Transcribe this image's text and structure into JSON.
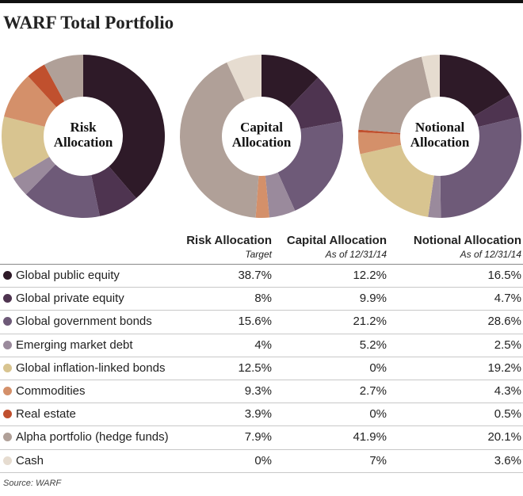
{
  "title": "WARF Total Portfolio",
  "source": "Source: WARF",
  "chart_data": [
    {
      "type": "donut",
      "title": "Risk Allocation",
      "subtitle": "Target",
      "categories": [
        "Global public equity",
        "Global private equity",
        "Global government bonds",
        "Emerging market debt",
        "Global inflation-linked bonds",
        "Commodities",
        "Real estate",
        "Alpha portfolio (hedge funds)",
        "Cash"
      ],
      "colors": [
        "#2e1a28",
        "#4e3450",
        "#6e5a78",
        "#9a8a9c",
        "#d8c490",
        "#d4906a",
        "#c0502e",
        "#b0a098",
        "#e6dcd0"
      ],
      "values": [
        38.7,
        8,
        15.6,
        4,
        12.5,
        9.3,
        3.9,
        7.9,
        0
      ],
      "value_labels": [
        "38.7%",
        "8%",
        "15.6%",
        "4%",
        "12.5%",
        "9.3%",
        "3.9%",
        "7.9%",
        "0%"
      ]
    },
    {
      "type": "donut",
      "title": "Capital Allocation",
      "subtitle": "As of 12/31/14",
      "categories": [
        "Global public equity",
        "Global private equity",
        "Global government bonds",
        "Emerging market debt",
        "Global inflation-linked bonds",
        "Commodities",
        "Real estate",
        "Alpha portfolio (hedge funds)",
        "Cash"
      ],
      "colors": [
        "#2e1a28",
        "#4e3450",
        "#6e5a78",
        "#9a8a9c",
        "#d8c490",
        "#d4906a",
        "#c0502e",
        "#b0a098",
        "#e6dcd0"
      ],
      "values": [
        12.2,
        9.9,
        21.2,
        5.2,
        0,
        2.7,
        0,
        41.9,
        7
      ],
      "value_labels": [
        "12.2%",
        "9.9%",
        "21.2%",
        "5.2%",
        "0%",
        "2.7%",
        "0%",
        "41.9%",
        "7%"
      ]
    },
    {
      "type": "donut",
      "title": "Notional Allocation",
      "subtitle": "As of 12/31/14",
      "categories": [
        "Global public equity",
        "Global private equity",
        "Global government bonds",
        "Emerging market debt",
        "Global inflation-linked bonds",
        "Commodities",
        "Real estate",
        "Alpha portfolio (hedge funds)",
        "Cash"
      ],
      "colors": [
        "#2e1a28",
        "#4e3450",
        "#6e5a78",
        "#9a8a9c",
        "#d8c490",
        "#d4906a",
        "#c0502e",
        "#b0a098",
        "#e6dcd0"
      ],
      "values": [
        16.5,
        4.7,
        28.6,
        2.5,
        19.2,
        4.3,
        0.5,
        20.1,
        3.6
      ],
      "value_labels": [
        "16.5%",
        "4.7%",
        "28.6%",
        "2.5%",
        "19.2%",
        "4.3%",
        "0.5%",
        "20.1%",
        "3.6%"
      ]
    }
  ]
}
